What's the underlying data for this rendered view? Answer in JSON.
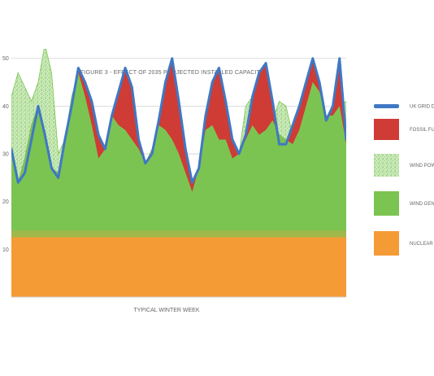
{
  "chart_data": {
    "type": "area",
    "title": "FIGURE 3 - EFFECT OF 2035 PROJECTED INSTALLED CAPACITY",
    "xlabel": "TYPICAL WINTER WEEK",
    "ylabel": "",
    "ylim": [
      0,
      52
    ],
    "y_ticks": [
      "10",
      "20",
      "30",
      "40",
      "50"
    ],
    "grid": "horizontal",
    "legend_position": "right",
    "colors": {
      "demand": "#3f78c4",
      "fossil": "#cf3b35",
      "wind_power": "#9fd487",
      "wind_generation": "#7cc451",
      "nuclear": "#f49b36"
    },
    "legend": [
      {
        "key": "demand",
        "label": "UK GRID D"
      },
      {
        "key": "fossil",
        "label": "FOSSIL FU"
      },
      {
        "key": "wind_power",
        "label": "WIND POW"
      },
      {
        "key": "wind_generation",
        "label": "WIND GEN"
      },
      {
        "key": "nuclear",
        "label": "NUCLEAR"
      }
    ],
    "x": [
      0,
      2,
      4,
      6,
      8,
      10,
      12,
      14,
      16,
      18,
      20,
      22,
      24,
      26,
      28,
      30,
      32,
      34,
      36,
      38,
      40,
      42,
      44,
      46,
      48,
      50,
      52,
      54,
      56,
      58,
      60,
      62,
      64,
      66,
      68,
      70,
      72,
      74,
      76,
      78,
      80,
      82,
      84,
      86,
      88,
      90,
      92,
      94,
      96,
      98,
      100
    ],
    "series": [
      {
        "key": "nuclear",
        "name": "NUCLEAR",
        "values": [
          14,
          14,
          14,
          14,
          14,
          14,
          14,
          14,
          14,
          14,
          14,
          14,
          14,
          14,
          14,
          14,
          14,
          14,
          14,
          14,
          14,
          14,
          14,
          14,
          14,
          14,
          14,
          14,
          14,
          14,
          14,
          14,
          14,
          14,
          14,
          14,
          14,
          14,
          14,
          14,
          14,
          14,
          14,
          14,
          14,
          14,
          14,
          14,
          14,
          14,
          14
        ]
      },
      {
        "key": "wind_generation",
        "name": "WIND GEN",
        "values": [
          31,
          24,
          29,
          36,
          40,
          34,
          27,
          26,
          33,
          40,
          47,
          42,
          36,
          29,
          31,
          38,
          36,
          35,
          33,
          31,
          28,
          31,
          36,
          35,
          33,
          30,
          26,
          22,
          27,
          35,
          36,
          33,
          33,
          29,
          30,
          33,
          36,
          34,
          35,
          37,
          34,
          33,
          32,
          35,
          40,
          45,
          43,
          38,
          38,
          40,
          32
        ]
      },
      {
        "key": "fossil",
        "name": "FOSSIL FU",
        "values": [
          31,
          24,
          26,
          33,
          40,
          34,
          27,
          25,
          33,
          40,
          48,
          45,
          41,
          34,
          31,
          38,
          43,
          48,
          44,
          33,
          28,
          30,
          37,
          45,
          50,
          41,
          31,
          24,
          27,
          38,
          45,
          48,
          41,
          33,
          30,
          34,
          42,
          47,
          49,
          41,
          32,
          32,
          36,
          40,
          45,
          50,
          45,
          37,
          40,
          50,
          33
        ]
      },
      {
        "key": "wind_power",
        "name": "WIND POW",
        "values": [
          42,
          47,
          44,
          41,
          45,
          53,
          47,
          30,
          33,
          42,
          47,
          42,
          36,
          29,
          31,
          38,
          36,
          35,
          33,
          31,
          28,
          31,
          36,
          35,
          33,
          30,
          26,
          22,
          27,
          35,
          36,
          33,
          33,
          29,
          30,
          40,
          42,
          37,
          35,
          37,
          41,
          40,
          34,
          38,
          43,
          45,
          43,
          38,
          38,
          40,
          41
        ]
      },
      {
        "key": "demand",
        "name": "UK GRID D",
        "values": [
          31,
          24,
          26,
          33,
          40,
          34,
          27,
          25,
          33,
          40,
          48,
          45,
          41,
          34,
          31,
          38,
          43,
          48,
          44,
          33,
          28,
          30,
          37,
          45,
          50,
          41,
          31,
          24,
          27,
          38,
          45,
          48,
          41,
          33,
          30,
          34,
          42,
          47,
          49,
          41,
          32,
          32,
          36,
          40,
          45,
          50,
          45,
          37,
          40,
          50,
          33
        ]
      }
    ]
  }
}
